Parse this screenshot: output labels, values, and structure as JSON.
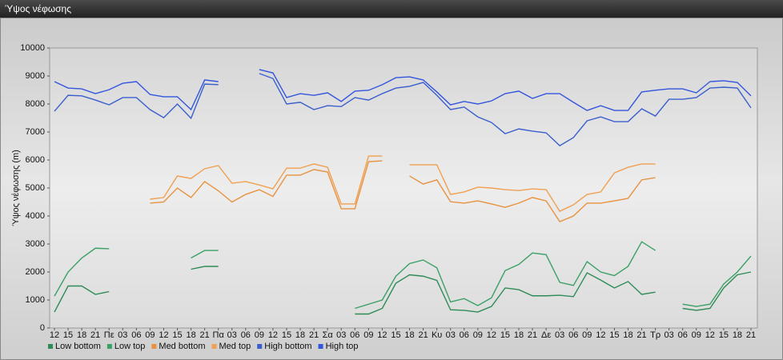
{
  "chart_data": {
    "type": "line",
    "title": "Ύψος νέφωσης",
    "ylabel": "Ύψος νέφωσης (m)",
    "categories": [
      "12",
      "15",
      "18",
      "21",
      "Πε",
      "03",
      "06",
      "09",
      "12",
      "15",
      "18",
      "21",
      "Πα",
      "03",
      "06",
      "09",
      "12",
      "15",
      "18",
      "21",
      "Σα",
      "03",
      "06",
      "09",
      "12",
      "15",
      "18",
      "21",
      "Κυ",
      "03",
      "06",
      "09",
      "12",
      "15",
      "18",
      "21",
      "Δε",
      "03",
      "06",
      "09",
      "12",
      "15",
      "18",
      "21",
      "Τρ",
      "03",
      "06",
      "09",
      "12",
      "15",
      "18",
      "21"
    ],
    "ylim": [
      0,
      10000
    ],
    "yticks": [
      0,
      1000,
      2000,
      3000,
      4000,
      5000,
      6000,
      7000,
      8000,
      9000,
      10000
    ],
    "grid": false,
    "legend": "bottom-left",
    "series": [
      {
        "name": "Low bottom",
        "color": "#2e8b57",
        "values": [
          570,
          1500,
          1500,
          1200,
          1300,
          null,
          null,
          null,
          null,
          null,
          2100,
          2200,
          2200,
          null,
          null,
          null,
          null,
          null,
          null,
          null,
          null,
          null,
          500,
          500,
          700,
          1600,
          1900,
          1850,
          1700,
          650,
          630,
          570,
          770,
          1430,
          1370,
          1150,
          1150,
          1170,
          1120,
          1970,
          1710,
          1430,
          1660,
          1200,
          1280,
          null,
          700,
          630,
          700,
          1430,
          1900,
          2000
        ]
      },
      {
        "name": "Low top",
        "color": "#3aa066",
        "values": [
          1140,
          2000,
          2500,
          2850,
          2830,
          null,
          null,
          null,
          null,
          null,
          2500,
          2770,
          2770,
          null,
          null,
          null,
          null,
          null,
          null,
          null,
          null,
          null,
          700,
          850,
          1000,
          1850,
          2300,
          2430,
          2150,
          930,
          1050,
          800,
          1080,
          2050,
          2270,
          2680,
          2620,
          1630,
          1520,
          2370,
          2000,
          1870,
          2200,
          3080,
          2770,
          null,
          850,
          770,
          850,
          1570,
          2000,
          2570
        ]
      },
      {
        "name": "Med bottom",
        "color": "#e8923f",
        "values": [
          null,
          null,
          null,
          null,
          null,
          null,
          null,
          4460,
          4500,
          5000,
          4660,
          5230,
          4900,
          4500,
          4770,
          4940,
          4700,
          5460,
          5460,
          5660,
          5570,
          4260,
          4260,
          5940,
          5970,
          null,
          5430,
          5140,
          5290,
          4510,
          4460,
          4540,
          4430,
          4310,
          4460,
          4660,
          4540,
          3800,
          4000,
          4460,
          4460,
          4540,
          4630,
          5290,
          5370,
          null,
          null,
          null,
          null,
          null,
          null,
          null
        ]
      },
      {
        "name": "Med top",
        "color": "#f0a050",
        "values": [
          null,
          null,
          null,
          null,
          null,
          null,
          null,
          4600,
          4660,
          5430,
          5340,
          5690,
          5800,
          5170,
          5230,
          5110,
          4970,
          5710,
          5710,
          5860,
          5740,
          4430,
          4430,
          6140,
          6140,
          null,
          5830,
          5830,
          5830,
          4770,
          4860,
          5030,
          5000,
          4940,
          4910,
          4970,
          4940,
          4170,
          4400,
          4770,
          4860,
          5540,
          5740,
          5860,
          5860,
          null,
          null,
          null,
          null,
          null,
          null,
          null
        ]
      },
      {
        "name": "High bottom",
        "color": "#3a5fcd",
        "values": [
          7740,
          8310,
          8290,
          8140,
          7970,
          8230,
          8230,
          7800,
          7510,
          8000,
          7490,
          8710,
          8690,
          null,
          null,
          9090,
          8910,
          8000,
          8060,
          7800,
          7940,
          7910,
          8230,
          8140,
          8370,
          8570,
          8630,
          8770,
          8310,
          7800,
          7890,
          7540,
          7340,
          6940,
          7110,
          7030,
          6970,
          6510,
          6800,
          7400,
          7540,
          7370,
          7370,
          7830,
          7570,
          8170,
          8170,
          8230,
          8570,
          8600,
          8570,
          7860
        ]
      },
      {
        "name": "High top",
        "color": "#3355dd",
        "values": [
          8800,
          8570,
          8540,
          8370,
          8510,
          8740,
          8800,
          8340,
          8260,
          8260,
          7800,
          8860,
          8800,
          null,
          null,
          9230,
          9110,
          8230,
          8370,
          8310,
          8400,
          8090,
          8460,
          8490,
          8690,
          8940,
          8970,
          8860,
          8430,
          7970,
          8090,
          8000,
          8110,
          8370,
          8460,
          8200,
          8370,
          8370,
          8060,
          7770,
          7940,
          7770,
          7770,
          8430,
          8490,
          8540,
          8540,
          8400,
          8800,
          8830,
          8770,
          8290
        ]
      }
    ]
  }
}
